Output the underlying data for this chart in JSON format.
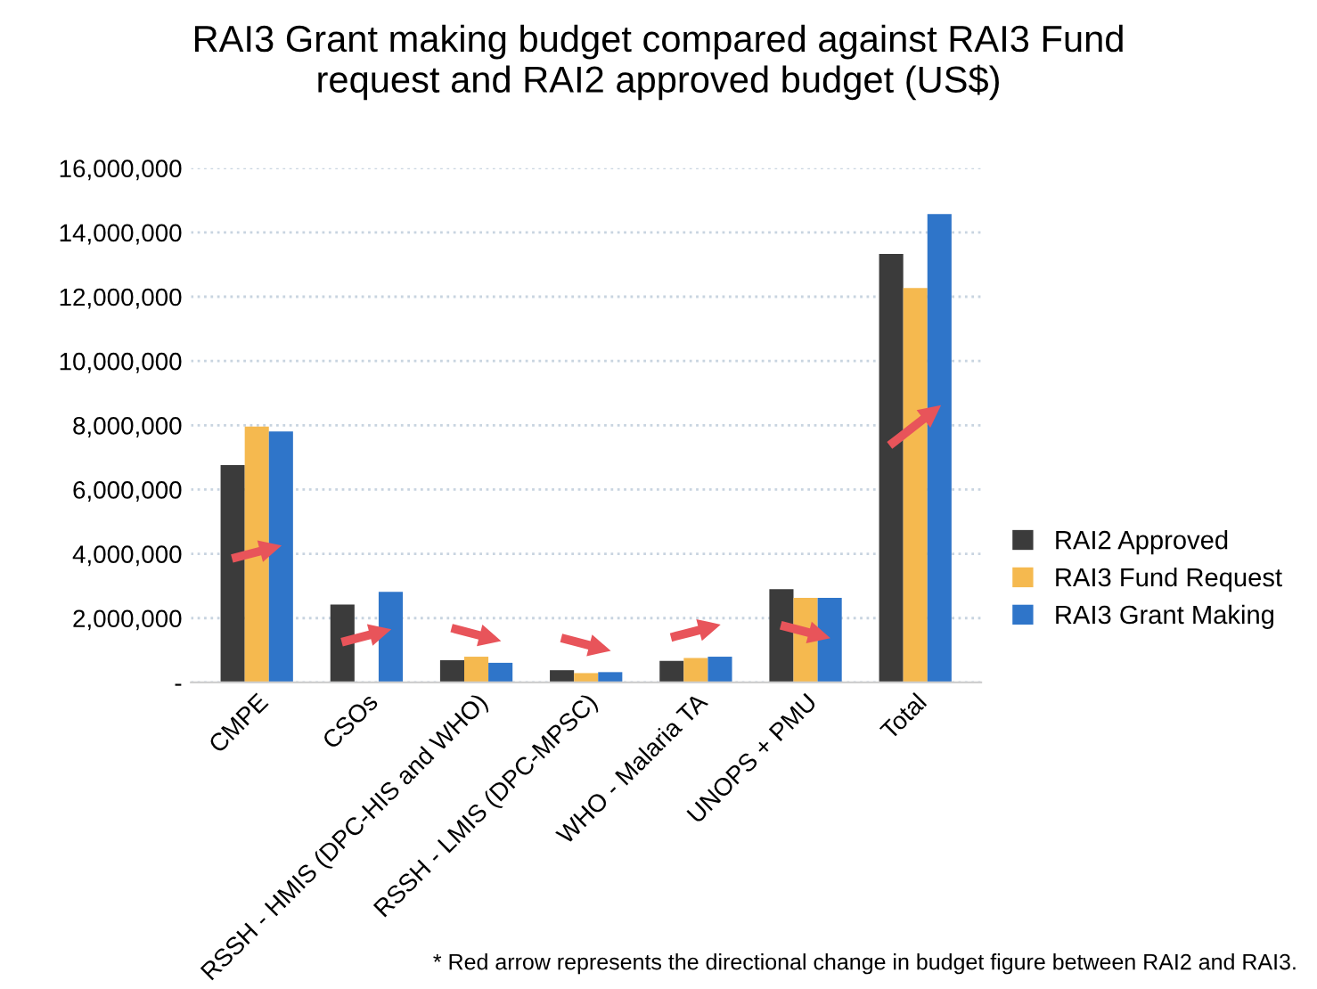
{
  "chart_data": {
    "type": "bar",
    "title": "RAI3 Grant making budget compared against RAI3 Fund\nrequest and RAI2 approved budget (US$)",
    "categories": [
      "CMPE",
      "CSOs",
      "RSSH - HMIS (DPC-HIS and WHO)",
      "RSSH - LMIS (DPC-MPSC)",
      "WHO - Malaria TA",
      "UNOPS + PMU",
      "Total"
    ],
    "series": [
      {
        "name": "RAI2 Approved",
        "color": "#3b3b3b",
        "values": [
          6760000,
          2420000,
          690000,
          380000,
          670000,
          2900000,
          13330000
        ]
      },
      {
        "name": "RAI3 Fund Request",
        "color": "#f5b94f",
        "values": [
          7960000,
          null,
          800000,
          290000,
          760000,
          2630000,
          12270000
        ]
      },
      {
        "name": "RAI3 Grant Making",
        "color": "#2f75c9",
        "values": [
          7810000,
          2820000,
          610000,
          320000,
          800000,
          2630000,
          14570000
        ]
      }
    ],
    "ylim": [
      0,
      16000000
    ],
    "yticks": [
      {
        "value": 0,
        "label": "-"
      },
      {
        "value": 2000000,
        "label": "2,000,000"
      },
      {
        "value": 4000000,
        "label": "4,000,000"
      },
      {
        "value": 6000000,
        "label": "6,000,000"
      },
      {
        "value": 8000000,
        "label": "8,000,000"
      },
      {
        "value": 10000000,
        "label": "10,000,000"
      },
      {
        "value": 12000000,
        "label": "12,000,000"
      },
      {
        "value": 14000000,
        "label": "14,000,000"
      },
      {
        "value": 16000000,
        "label": "16,000,000"
      }
    ],
    "grid": "y",
    "legend": "right",
    "annotations": [
      "* Red arrow represents the directional change in budget figure between RAI2 and RAI3."
    ]
  }
}
